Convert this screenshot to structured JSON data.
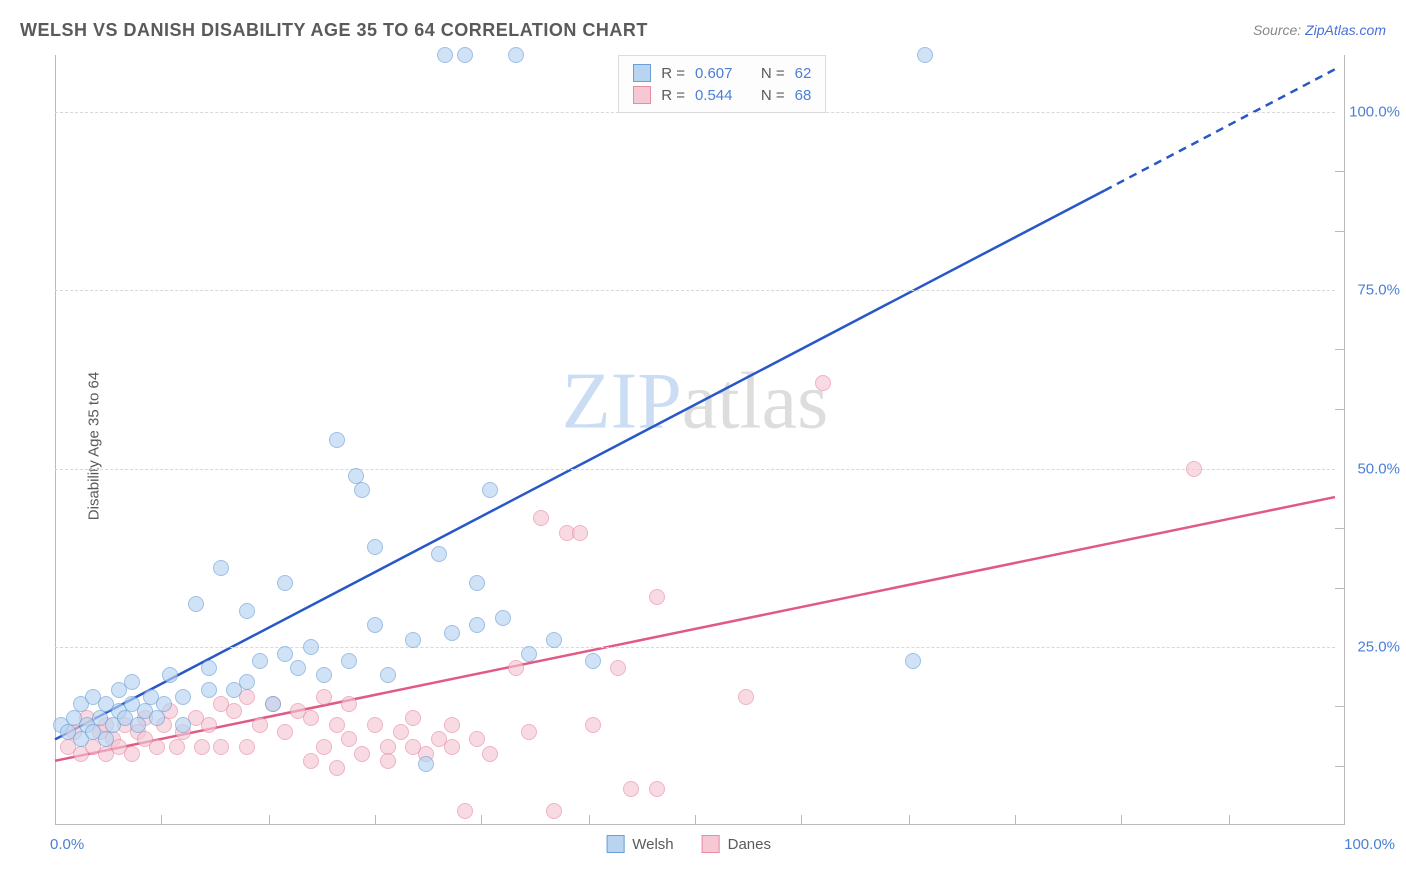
{
  "title": "WELSH VS DANISH DISABILITY AGE 35 TO 64 CORRELATION CHART",
  "source_label": "Source: ",
  "source_link": "ZipAtlas.com",
  "ylabel": "Disability Age 35 to 64",
  "watermark": {
    "part1": "ZIP",
    "part2": "atlas"
  },
  "chart": {
    "type": "scatter",
    "xlim": [
      0,
      100
    ],
    "ylim": [
      0,
      108
    ],
    "background_color": "#ffffff",
    "grid_color": "#d8d8d8",
    "axis_color": "#bbbbbb",
    "point_radius": 8,
    "text_color": "#5a5a5a",
    "tick_color": "#4a7fd8",
    "tick_fontsize": 15,
    "label_fontsize": 15,
    "title_fontsize": 18,
    "yticks": [
      25,
      50,
      75,
      100
    ],
    "ytick_labels": [
      "25.0%",
      "50.0%",
      "75.0%",
      "100.0%"
    ],
    "xticks_major": [
      0,
      100
    ],
    "xtick_labels": [
      "0.0%",
      "100.0%"
    ],
    "xtick_minor": [
      8.3,
      16.7,
      25,
      33.3,
      41.7,
      50,
      58.3,
      66.7,
      75,
      83.3,
      91.7
    ],
    "ytick_minor": [
      8.3,
      16.7,
      33.3,
      41.7,
      58.3,
      66.7,
      83.3,
      91.7
    ]
  },
  "series": {
    "welsh": {
      "label": "Welsh",
      "fill_color": "#b8d4f0",
      "stroke_color": "#6a9fd8",
      "fill_opacity": 0.65,
      "line_color": "#2858c8",
      "line_width": 2.5,
      "R": "0.607",
      "N": "62",
      "trend": {
        "x1": 0,
        "y1": 12,
        "x2": 82,
        "y2": 89,
        "x2_dash": 100,
        "y2_dash": 106
      },
      "points": [
        {
          "x": 0.5,
          "y": 14
        },
        {
          "x": 1,
          "y": 13
        },
        {
          "x": 1.5,
          "y": 15
        },
        {
          "x": 2,
          "y": 12
        },
        {
          "x": 2,
          "y": 17
        },
        {
          "x": 2.5,
          "y": 14
        },
        {
          "x": 3,
          "y": 13
        },
        {
          "x": 3,
          "y": 18
        },
        {
          "x": 3.5,
          "y": 15
        },
        {
          "x": 4,
          "y": 12
        },
        {
          "x": 4,
          "y": 17
        },
        {
          "x": 4.5,
          "y": 14
        },
        {
          "x": 5,
          "y": 16
        },
        {
          "x": 5,
          "y": 19
        },
        {
          "x": 5.5,
          "y": 15
        },
        {
          "x": 6,
          "y": 17
        },
        {
          "x": 6,
          "y": 20
        },
        {
          "x": 6.5,
          "y": 14
        },
        {
          "x": 7,
          "y": 16
        },
        {
          "x": 7.5,
          "y": 18
        },
        {
          "x": 8,
          "y": 15
        },
        {
          "x": 8.5,
          "y": 17
        },
        {
          "x": 9,
          "y": 21
        },
        {
          "x": 10,
          "y": 18
        },
        {
          "x": 10,
          "y": 14
        },
        {
          "x": 11,
          "y": 31
        },
        {
          "x": 12,
          "y": 19
        },
        {
          "x": 12,
          "y": 22
        },
        {
          "x": 13,
          "y": 36
        },
        {
          "x": 14,
          "y": 19
        },
        {
          "x": 15,
          "y": 20
        },
        {
          "x": 15,
          "y": 30
        },
        {
          "x": 16,
          "y": 23
        },
        {
          "x": 17,
          "y": 17
        },
        {
          "x": 18,
          "y": 24
        },
        {
          "x": 18,
          "y": 34
        },
        {
          "x": 19,
          "y": 22
        },
        {
          "x": 20,
          "y": 25
        },
        {
          "x": 21,
          "y": 21
        },
        {
          "x": 22,
          "y": 54
        },
        {
          "x": 23,
          "y": 23
        },
        {
          "x": 23.5,
          "y": 49
        },
        {
          "x": 24,
          "y": 47
        },
        {
          "x": 25,
          "y": 28
        },
        {
          "x": 25,
          "y": 39
        },
        {
          "x": 26,
          "y": 21
        },
        {
          "x": 28,
          "y": 26
        },
        {
          "x": 29,
          "y": 8.5
        },
        {
          "x": 30,
          "y": 38
        },
        {
          "x": 30.5,
          "y": 108
        },
        {
          "x": 31,
          "y": 27
        },
        {
          "x": 32,
          "y": 108
        },
        {
          "x": 33,
          "y": 28
        },
        {
          "x": 33,
          "y": 34
        },
        {
          "x": 34,
          "y": 47
        },
        {
          "x": 35,
          "y": 29
        },
        {
          "x": 36,
          "y": 108
        },
        {
          "x": 37,
          "y": 24
        },
        {
          "x": 39,
          "y": 26
        },
        {
          "x": 42,
          "y": 23
        },
        {
          "x": 67,
          "y": 23
        },
        {
          "x": 68,
          "y": 108
        }
      ]
    },
    "danes": {
      "label": "Danes",
      "fill_color": "#f5c8d4",
      "stroke_color": "#e88aa8",
      "fill_opacity": 0.65,
      "line_color": "#e05a85",
      "line_width": 2.5,
      "R": "0.544",
      "N": "68",
      "trend": {
        "x1": 0,
        "y1": 9,
        "x2": 100,
        "y2": 46
      },
      "points": [
        {
          "x": 1,
          "y": 11
        },
        {
          "x": 1.5,
          "y": 13
        },
        {
          "x": 2,
          "y": 10
        },
        {
          "x": 2.5,
          "y": 15
        },
        {
          "x": 3,
          "y": 11
        },
        {
          "x": 3.5,
          "y": 13
        },
        {
          "x": 4,
          "y": 10
        },
        {
          "x": 4,
          "y": 14
        },
        {
          "x": 4.5,
          "y": 12
        },
        {
          "x": 5,
          "y": 11
        },
        {
          "x": 5.5,
          "y": 14
        },
        {
          "x": 6,
          "y": 10
        },
        {
          "x": 6.5,
          "y": 13
        },
        {
          "x": 7,
          "y": 12
        },
        {
          "x": 7,
          "y": 15
        },
        {
          "x": 8,
          "y": 11
        },
        {
          "x": 8.5,
          "y": 14
        },
        {
          "x": 9,
          "y": 16
        },
        {
          "x": 9.5,
          "y": 11
        },
        {
          "x": 10,
          "y": 13
        },
        {
          "x": 11,
          "y": 15
        },
        {
          "x": 11.5,
          "y": 11
        },
        {
          "x": 12,
          "y": 14
        },
        {
          "x": 13,
          "y": 17
        },
        {
          "x": 13,
          "y": 11
        },
        {
          "x": 14,
          "y": 16
        },
        {
          "x": 15,
          "y": 18
        },
        {
          "x": 15,
          "y": 11
        },
        {
          "x": 16,
          "y": 14
        },
        {
          "x": 17,
          "y": 17
        },
        {
          "x": 18,
          "y": 13
        },
        {
          "x": 19,
          "y": 16
        },
        {
          "x": 20,
          "y": 9
        },
        {
          "x": 20,
          "y": 15
        },
        {
          "x": 21,
          "y": 11
        },
        {
          "x": 21,
          "y": 18
        },
        {
          "x": 22,
          "y": 14
        },
        {
          "x": 22,
          "y": 8
        },
        {
          "x": 23,
          "y": 12
        },
        {
          "x": 23,
          "y": 17
        },
        {
          "x": 24,
          "y": 10
        },
        {
          "x": 25,
          "y": 14
        },
        {
          "x": 26,
          "y": 11
        },
        {
          "x": 26,
          "y": 9
        },
        {
          "x": 27,
          "y": 13
        },
        {
          "x": 28,
          "y": 11
        },
        {
          "x": 28,
          "y": 15
        },
        {
          "x": 29,
          "y": 10
        },
        {
          "x": 30,
          "y": 12
        },
        {
          "x": 31,
          "y": 11
        },
        {
          "x": 31,
          "y": 14
        },
        {
          "x": 32,
          "y": 2
        },
        {
          "x": 33,
          "y": 12
        },
        {
          "x": 34,
          "y": 10
        },
        {
          "x": 36,
          "y": 22
        },
        {
          "x": 37,
          "y": 13
        },
        {
          "x": 38,
          "y": 43
        },
        {
          "x": 39,
          "y": 2
        },
        {
          "x": 40,
          "y": 41
        },
        {
          "x": 41,
          "y": 41
        },
        {
          "x": 42,
          "y": 14
        },
        {
          "x": 44,
          "y": 22
        },
        {
          "x": 45,
          "y": 5
        },
        {
          "x": 47,
          "y": 32
        },
        {
          "x": 47,
          "y": 5
        },
        {
          "x": 54,
          "y": 18
        },
        {
          "x": 60,
          "y": 62
        },
        {
          "x": 89,
          "y": 50
        }
      ]
    }
  },
  "stat_labels": {
    "R": "R =",
    "N": "N ="
  }
}
